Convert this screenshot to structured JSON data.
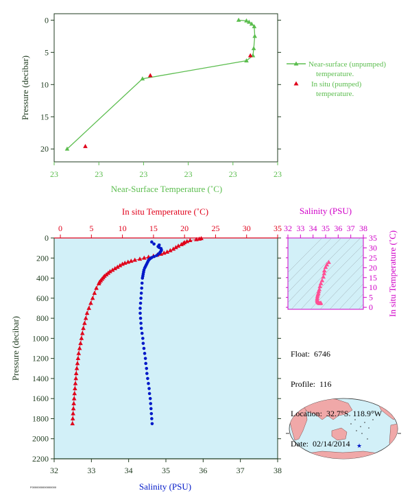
{
  "float_info": {
    "float": "Float:  6746",
    "profile": "Profile:  116",
    "location": "Location:  32.7°S  118.9°W",
    "date": "Date:  02/14/2014"
  },
  "file_id": "F0000000000000000",
  "colors": {
    "green": "#5bbd4e",
    "red": "#e0001a",
    "blue": "#0018c8",
    "magenta": "#d000c8",
    "axis_dark": "#1e3a1e",
    "panel_fill": "#d2f0f8",
    "pink": "#ff4f94",
    "land": "#f0a8a8"
  },
  "chart_data": [
    {
      "id": "near-surface",
      "type": "line",
      "xlabel": "Near-Surface Temperature (˚C)",
      "ylabel": "Pressure (decibar)",
      "x_tick_labels": [
        "23",
        "23",
        "23",
        "23",
        "23",
        "23"
      ],
      "y_ticks": [
        0,
        5,
        10,
        15,
        20
      ],
      "ylim": [
        22,
        -1
      ],
      "legend": {
        "placement": "right",
        "entries": [
          {
            "lines": [
              "Near-surface (unpumped)",
              "temperature."
            ],
            "marker": "line-triangle",
            "color": "#5bbd4e"
          },
          {
            "lines": [
              "In situ (pumped)",
              "temperature."
            ],
            "marker": "triangle",
            "color": "#e0001a"
          }
        ]
      },
      "series": [
        {
          "name": "Near-surface (unpumped) temperature.",
          "color": "#5bbd4e",
          "points": [
            [
              22.981,
              0.0
            ],
            [
              22.984,
              0.1
            ],
            [
              22.985,
              0.3
            ],
            [
              22.986,
              0.6
            ],
            [
              22.987,
              1.0
            ],
            [
              22.9872,
              2.5
            ],
            [
              22.9868,
              4.4
            ],
            [
              22.9865,
              5.5
            ],
            [
              22.984,
              6.3
            ],
            [
              22.944,
              9.1
            ],
            [
              22.915,
              20.0
            ]
          ]
        },
        {
          "name": "In situ (pumped) temperature.",
          "color": "#e0001a",
          "points": [
            [
              22.9855,
              5.5
            ],
            [
              22.947,
              8.6
            ],
            [
              22.922,
              19.6
            ]
          ]
        }
      ]
    },
    {
      "id": "profile",
      "type": "scatter",
      "top_axis_label": "In situ Temperature (˚C)",
      "bottom_axis_label": "Salinity (PSU)",
      "ylabel": "Pressure (decibar)",
      "temperature_ticks": [
        0,
        5,
        10,
        15,
        20,
        25,
        30,
        35
      ],
      "salinity_ticks": [
        32,
        33,
        34,
        35,
        36,
        37,
        38
      ],
      "pressure_ticks": [
        0,
        200,
        400,
        600,
        800,
        1000,
        1200,
        1400,
        1600,
        1800,
        2000,
        2200
      ],
      "temperature_range": [
        -1,
        35
      ],
      "salinity_range": [
        32,
        38
      ],
      "pressure_range": [
        2200,
        0
      ],
      "temperature_series": {
        "name": "In situ Temperature",
        "color": "#e0001a",
        "points": [
          [
            22.7,
            5
          ],
          [
            22.4,
            10
          ],
          [
            21.9,
            15
          ],
          [
            20.9,
            25
          ],
          [
            20.4,
            35
          ],
          [
            20.0,
            45
          ],
          [
            19.8,
            55
          ],
          [
            19.5,
            65
          ],
          [
            19.0,
            80
          ],
          [
            18.6,
            95
          ],
          [
            18.2,
            110
          ],
          [
            17.7,
            125
          ],
          [
            17.2,
            140
          ],
          [
            16.7,
            150
          ],
          [
            16.2,
            160
          ],
          [
            15.6,
            170
          ],
          [
            15.0,
            180
          ],
          [
            14.2,
            190
          ],
          [
            13.5,
            200
          ],
          [
            12.8,
            210
          ],
          [
            12.0,
            220
          ],
          [
            11.4,
            230
          ],
          [
            10.9,
            240
          ],
          [
            10.4,
            250
          ],
          [
            10.0,
            260
          ],
          [
            9.6,
            275
          ],
          [
            9.2,
            290
          ],
          [
            8.8,
            305
          ],
          [
            8.4,
            320
          ],
          [
            8.0,
            335
          ],
          [
            7.7,
            350
          ],
          [
            7.4,
            365
          ],
          [
            7.1,
            380
          ],
          [
            6.9,
            395
          ],
          [
            6.7,
            410
          ],
          [
            6.5,
            425
          ],
          [
            6.3,
            440
          ],
          [
            6.2,
            455
          ],
          [
            5.8,
            500
          ],
          [
            5.5,
            550
          ],
          [
            5.2,
            600
          ],
          [
            4.9,
            650
          ],
          [
            4.6,
            700
          ],
          [
            4.3,
            750
          ],
          [
            4.1,
            800
          ],
          [
            3.9,
            850
          ],
          [
            3.7,
            900
          ],
          [
            3.55,
            950
          ],
          [
            3.4,
            1000
          ],
          [
            3.25,
            1050
          ],
          [
            3.1,
            1100
          ],
          [
            2.95,
            1150
          ],
          [
            2.85,
            1200
          ],
          [
            2.75,
            1250
          ],
          [
            2.65,
            1300
          ],
          [
            2.55,
            1350
          ],
          [
            2.5,
            1400
          ],
          [
            2.42,
            1450
          ],
          [
            2.35,
            1500
          ],
          [
            2.28,
            1550
          ],
          [
            2.22,
            1600
          ],
          [
            2.16,
            1650
          ],
          [
            2.1,
            1700
          ],
          [
            2.05,
            1750
          ],
          [
            2.0,
            1800
          ],
          [
            1.95,
            1850
          ]
        ]
      },
      "salinity_series": {
        "name": "Salinity",
        "color": "#0018c8",
        "points": [
          [
            34.62,
            40
          ],
          [
            34.68,
            60
          ],
          [
            34.82,
            70
          ],
          [
            34.79,
            85
          ],
          [
            34.82,
            95
          ],
          [
            34.87,
            105
          ],
          [
            34.88,
            120
          ],
          [
            34.87,
            130
          ],
          [
            34.85,
            140
          ],
          [
            34.83,
            150
          ],
          [
            34.8,
            160
          ],
          [
            34.75,
            175
          ],
          [
            34.68,
            185
          ],
          [
            34.62,
            195
          ],
          [
            34.58,
            205
          ],
          [
            34.55,
            215
          ],
          [
            34.53,
            225
          ],
          [
            34.51,
            240
          ],
          [
            34.49,
            255
          ],
          [
            34.47,
            270
          ],
          [
            34.45,
            285
          ],
          [
            34.43,
            300
          ],
          [
            34.41,
            320
          ],
          [
            34.4,
            340
          ],
          [
            34.39,
            360
          ],
          [
            34.38,
            380
          ],
          [
            34.37,
            400
          ],
          [
            34.36,
            450
          ],
          [
            34.35,
            500
          ],
          [
            34.34,
            550
          ],
          [
            34.33,
            600
          ],
          [
            34.32,
            650
          ],
          [
            34.31,
            700
          ],
          [
            34.31,
            750
          ],
          [
            34.32,
            800
          ],
          [
            34.33,
            850
          ],
          [
            34.34,
            900
          ],
          [
            34.36,
            950
          ],
          [
            34.38,
            1000
          ],
          [
            34.39,
            1050
          ],
          [
            34.41,
            1100
          ],
          [
            34.43,
            1150
          ],
          [
            34.45,
            1200
          ],
          [
            34.46,
            1250
          ],
          [
            34.48,
            1300
          ],
          [
            34.49,
            1350
          ],
          [
            34.51,
            1400
          ],
          [
            34.53,
            1450
          ],
          [
            34.55,
            1500
          ],
          [
            34.56,
            1550
          ],
          [
            34.58,
            1600
          ],
          [
            34.59,
            1650
          ],
          [
            34.6,
            1700
          ],
          [
            34.61,
            1750
          ],
          [
            34.62,
            1800
          ],
          [
            34.63,
            1850
          ]
        ]
      }
    },
    {
      "id": "ts-diagram",
      "type": "scatter",
      "top_axis_label": "Salinity (PSU)",
      "right_axis_label": "In situ Temperature (˚C)",
      "salinity_ticks": [
        32,
        33,
        34,
        35,
        36,
        37,
        38
      ],
      "temperature_ticks": [
        0,
        5,
        10,
        15,
        20,
        25,
        30,
        35
      ],
      "salinity_range": [
        32,
        38
      ],
      "temperature_range": [
        -1,
        35
      ],
      "series": {
        "color": "#ff4f94",
        "points": [
          [
            35.25,
            22.7
          ],
          [
            35.1,
            21.5
          ],
          [
            35.0,
            20.2
          ],
          [
            34.9,
            18.5
          ],
          [
            34.88,
            17.0
          ],
          [
            34.82,
            15.3
          ],
          [
            34.72,
            13.5
          ],
          [
            34.62,
            12.0
          ],
          [
            34.55,
            10.5
          ],
          [
            34.5,
            9.0
          ],
          [
            34.45,
            8.0
          ],
          [
            34.42,
            7.0
          ],
          [
            34.38,
            6.3
          ],
          [
            34.35,
            5.5
          ],
          [
            34.33,
            4.6
          ],
          [
            34.32,
            3.8
          ],
          [
            34.34,
            3.2
          ],
          [
            34.36,
            2.9
          ],
          [
            34.39,
            2.5
          ],
          [
            34.44,
            2.3
          ],
          [
            34.48,
            2.1
          ],
          [
            34.52,
            2.0
          ],
          [
            34.58,
            1.95
          ],
          [
            34.62,
            2.2
          ]
        ]
      }
    }
  ],
  "map": {
    "float_marker_lon": -118.9,
    "float_marker_lat": -32.7
  }
}
